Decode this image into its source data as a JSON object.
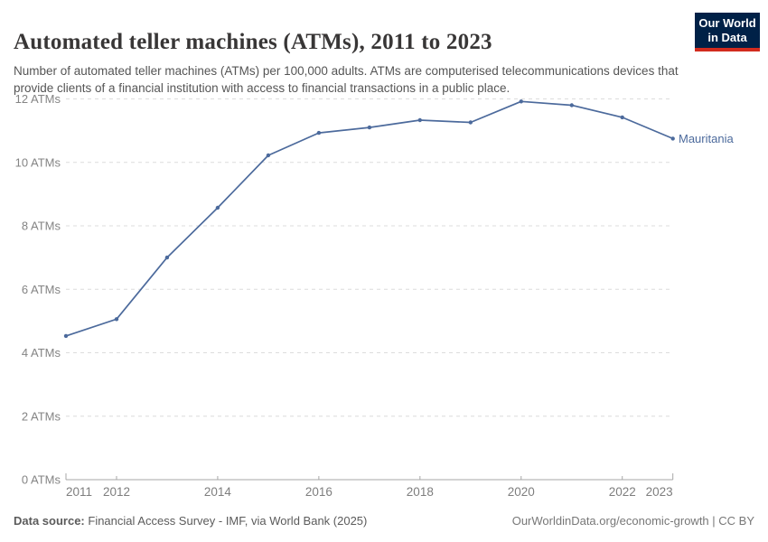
{
  "header": {
    "title": "Automated teller machines (ATMs), 2011 to 2023",
    "subtitle": "Number of automated teller machines (ATMs) per 100,000 adults. ATMs are computerised telecommunications devices that provide clients of a financial institution with access to financial transactions in a public place.",
    "logo": {
      "line1": "Our World",
      "line2": "in Data",
      "bg_color": "#002147",
      "stripe_color": "#d22b1e"
    }
  },
  "chart_data": {
    "type": "line",
    "title": "Automated teller machines (ATMs), 2011 to 2023",
    "x": [
      2011,
      2012,
      2013,
      2014,
      2015,
      2016,
      2017,
      2018,
      2019,
      2020,
      2021,
      2022,
      2023
    ],
    "series": [
      {
        "name": "Mauritania",
        "color": "#4C6A9C",
        "values": [
          4.53,
          5.06,
          7.0,
          8.57,
          10.22,
          10.93,
          11.1,
          11.33,
          11.26,
          11.92,
          11.8,
          11.42,
          10.75
        ]
      }
    ],
    "unit": "ATMs",
    "ylim": [
      0,
      12
    ],
    "yticks": [
      0,
      2,
      4,
      6,
      8,
      10,
      12
    ],
    "xticks": [
      2011,
      2012,
      2014,
      2016,
      2018,
      2020,
      2022,
      2023
    ],
    "grid": "horizontal-dashed",
    "legend_position": "end-of-line",
    "grid_color": "#dcdcdc",
    "axis_color": "#a7a7a7",
    "tick_label_color": "#848484"
  },
  "footer": {
    "source_label": "Data source:",
    "source_text": "Financial Access Survey - IMF, via World Bank (2025)",
    "rights": "OurWorldinData.org/economic-growth | CC BY"
  }
}
